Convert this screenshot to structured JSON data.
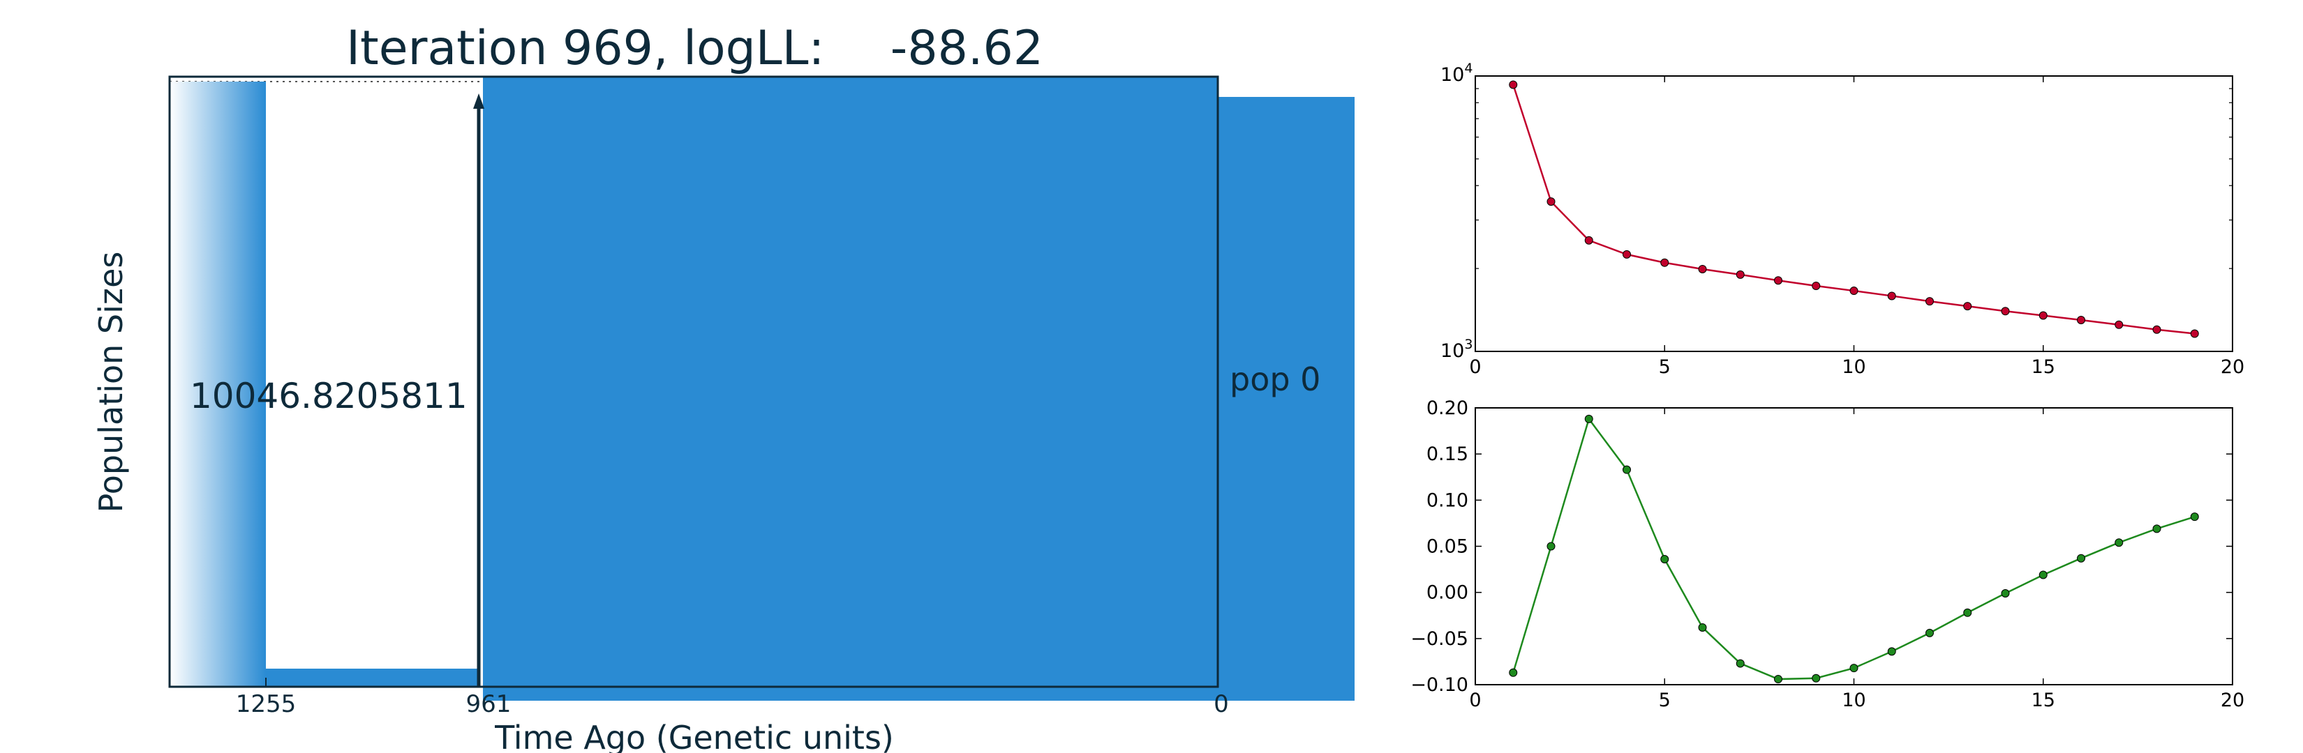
{
  "chart_data": [
    {
      "type": "area",
      "title": "Iteration 969, logLL:",
      "title_value": "-88.62",
      "xlabel": "Time Ago (Genetic units)",
      "ylabel": "Population Sizes",
      "x_ticks": [
        "1255",
        "961",
        "0"
      ],
      "x_tick_values": [
        1255,
        961,
        0
      ],
      "population_label": "pop 0",
      "size_annotation": "10046.8205811",
      "fill_color": "#2a8bd3",
      "frame_color": "#0e2a3a",
      "epochs": [
        {
          "start": 1255,
          "end": 961,
          "relative_size": 0.03
        },
        {
          "start": 961,
          "end": 0,
          "relative_size": 1.0
        }
      ]
    },
    {
      "type": "line",
      "y_scale": "log",
      "x": [
        1,
        2,
        3,
        4,
        5,
        6,
        7,
        8,
        9,
        10,
        11,
        12,
        13,
        14,
        15,
        16,
        17,
        18,
        19
      ],
      "series": [
        {
          "values": [
            9300,
            3500,
            2530,
            2250,
            2100,
            1990,
            1900,
            1810,
            1730,
            1660,
            1590,
            1520,
            1460,
            1400,
            1350,
            1300,
            1250,
            1200,
            1160
          ],
          "color": "#c1002c"
        }
      ],
      "xlim": [
        0,
        20
      ],
      "ylim": [
        1000,
        10000
      ],
      "x_ticks": [
        "0",
        "5",
        "10",
        "15",
        "20"
      ],
      "y_ticks": [
        "10",
        "10"
      ],
      "y_tick_exponents": [
        "3",
        "4"
      ]
    },
    {
      "type": "line",
      "x": [
        1,
        2,
        3,
        4,
        5,
        6,
        7,
        8,
        9,
        10,
        11,
        12,
        13,
        14,
        15,
        16,
        17,
        18,
        19
      ],
      "series": [
        {
          "values": [
            -0.087,
            0.05,
            0.188,
            0.133,
            0.036,
            -0.038,
            -0.077,
            -0.094,
            -0.093,
            -0.082,
            -0.064,
            -0.044,
            -0.022,
            -0.001,
            0.019,
            0.037,
            0.054,
            0.069,
            0.082
          ],
          "color": "#1e8a1e"
        }
      ],
      "xlim": [
        0,
        20
      ],
      "ylim": [
        -0.1,
        0.2
      ],
      "x_ticks": [
        "0",
        "5",
        "10",
        "15",
        "20"
      ],
      "y_ticks": [
        "−0.10",
        "−0.05",
        "0.00",
        "0.05",
        "0.10",
        "0.15",
        "0.20"
      ]
    }
  ]
}
